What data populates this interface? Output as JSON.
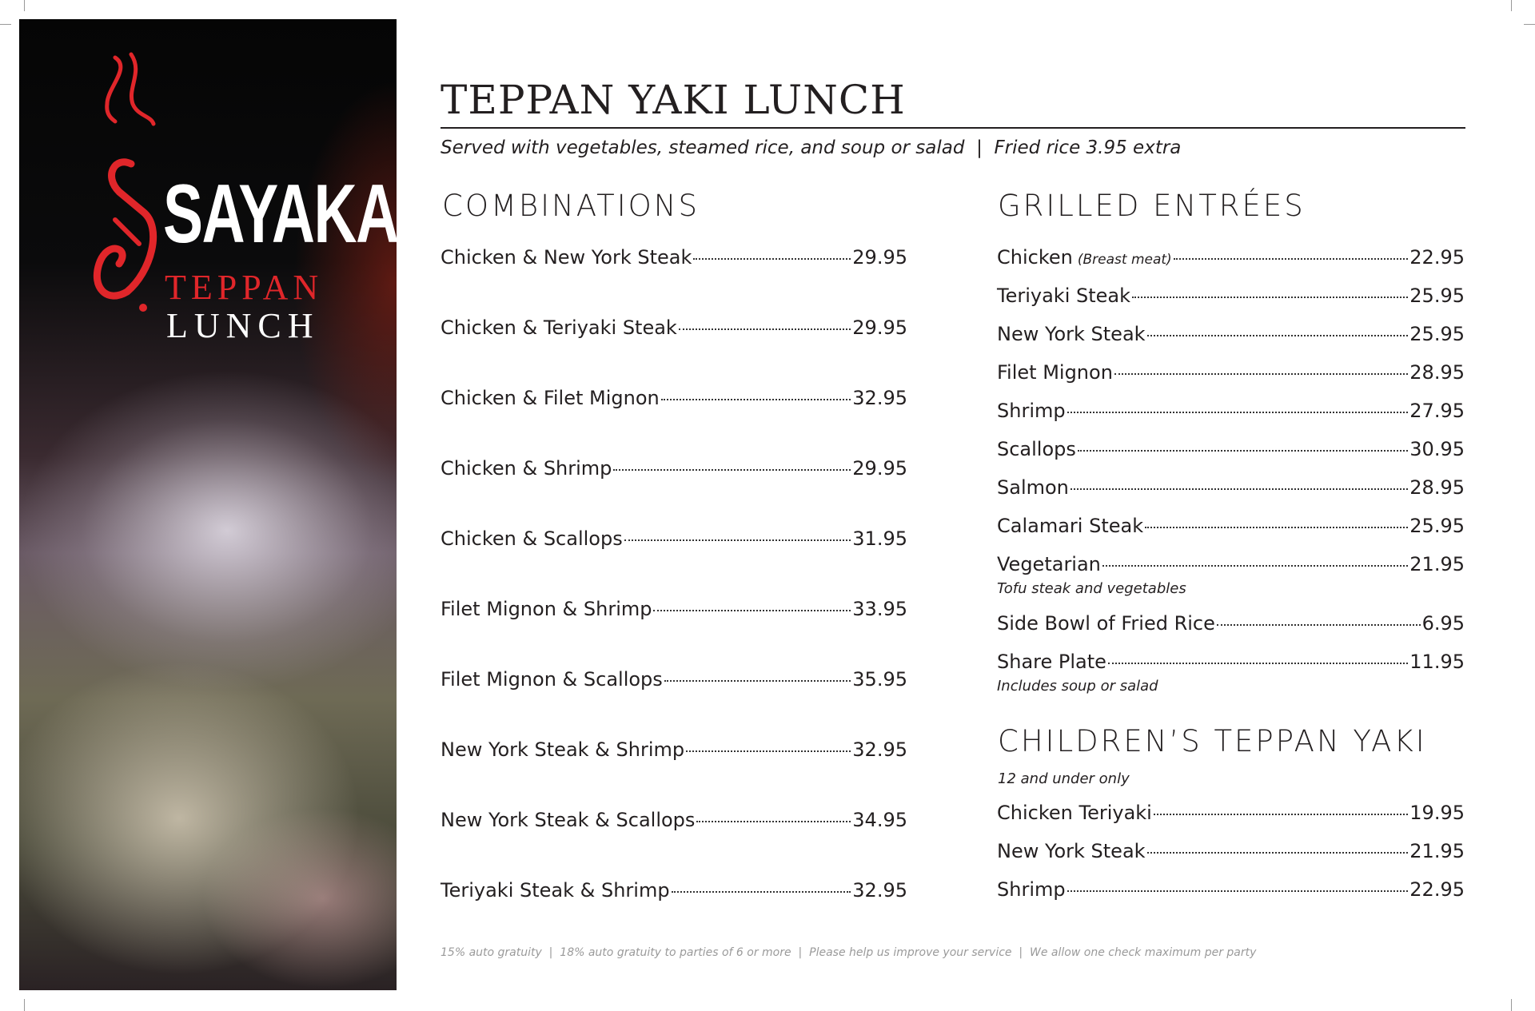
{
  "brand": {
    "name": "SAYAKA",
    "line1": "TEPPAN",
    "line2": "LUNCH",
    "red": "#e0262a"
  },
  "title": "TEPPAN YAKI LUNCH",
  "subtitle": "Served with vegetables, steamed rice, and soup or salad  |  Fried rice 3.95 extra",
  "combinations": {
    "heading": "COMBINATIONS",
    "items": [
      {
        "name": "Chicken & New York Steak",
        "price": "29.95"
      },
      {
        "name": "Chicken & Teriyaki Steak",
        "price": "29.95"
      },
      {
        "name": "Chicken & Filet Mignon",
        "price": "32.95"
      },
      {
        "name": "Chicken & Shrimp",
        "price": "29.95"
      },
      {
        "name": "Chicken & Scallops",
        "price": "31.95"
      },
      {
        "name": "Filet Mignon & Shrimp",
        "price": "33.95"
      },
      {
        "name": "Filet Mignon & Scallops",
        "price": "35.95"
      },
      {
        "name": "New York Steak & Shrimp",
        "price": "32.95"
      },
      {
        "name": "New York Steak & Scallops",
        "price": "34.95"
      },
      {
        "name": "Teriyaki Steak & Shrimp",
        "price": "32.95"
      }
    ]
  },
  "grilled": {
    "heading": "GRILLED ENTRÉES",
    "items": [
      {
        "name": "Chicken",
        "detail": "(Breast meat)",
        "price": "22.95"
      },
      {
        "name": "Teriyaki Steak",
        "price": "25.95"
      },
      {
        "name": "New York Steak",
        "price": "25.95"
      },
      {
        "name": "Filet Mignon",
        "price": "28.95"
      },
      {
        "name": "Shrimp",
        "price": "27.95"
      },
      {
        "name": "Scallops",
        "price": "30.95"
      },
      {
        "name": "Salmon",
        "price": "28.95"
      },
      {
        "name": "Calamari Steak",
        "price": "25.95"
      },
      {
        "name": "Vegetarian",
        "price": "21.95",
        "note": "Tofu steak and vegetables"
      },
      {
        "name": "Side Bowl of Fried Rice",
        "price": "6.95"
      },
      {
        "name": "Share Plate",
        "price": "11.95",
        "note": "Includes soup or salad"
      }
    ]
  },
  "children": {
    "heading": "CHILDREN’S TEPPAN YAKI",
    "note": "12 and under only",
    "items": [
      {
        "name": "Chicken Teriyaki",
        "price": "19.95"
      },
      {
        "name": "New York Steak",
        "price": "21.95"
      },
      {
        "name": "Shrimp",
        "price": "22.95"
      }
    ]
  },
  "footer": "15% auto gratuity  |  18% auto gratuity to parties of 6 or more  |  Please help us improve your service  |  We allow one check maximum per party"
}
